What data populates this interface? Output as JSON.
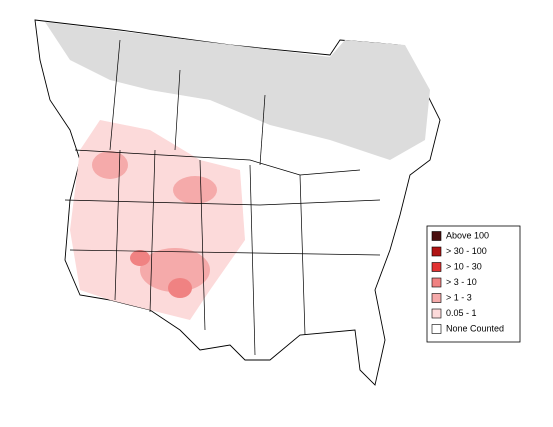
{
  "legend": {
    "items": [
      {
        "label": "Above 100",
        "color": "#4a0f0f"
      },
      {
        "label": "> 30 - 100",
        "color": "#b01414"
      },
      {
        "label": "> 10 - 30",
        "color": "#e23232"
      },
      {
        "label": "> 3 - 10",
        "color": "#f08282"
      },
      {
        "label": "> 1 - 3",
        "color": "#f5aaaa"
      },
      {
        "label": "0.05 - 1",
        "color": "#fcdada"
      },
      {
        "label": "None Counted",
        "color": "#ffffff"
      }
    ]
  }
}
